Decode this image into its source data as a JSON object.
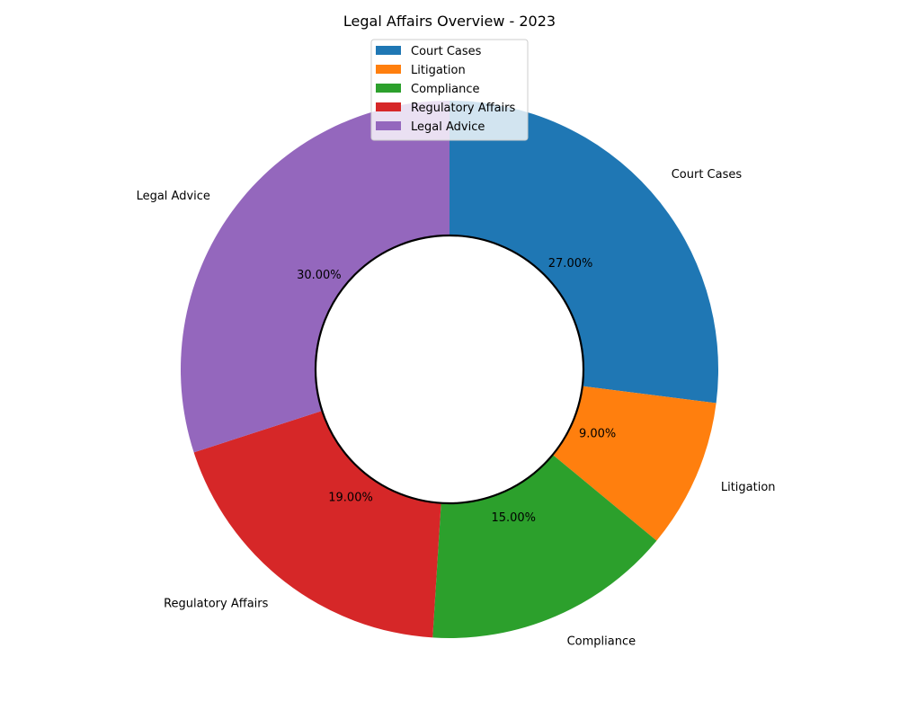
{
  "chart_data": {
    "type": "pie",
    "style": "donut",
    "title": "Legal Affairs Overview - 2023",
    "categories": [
      "Court Cases",
      "Litigation",
      "Compliance",
      "Regulatory Affairs",
      "Legal Advice"
    ],
    "values": [
      27,
      9,
      15,
      19,
      30
    ],
    "percent_labels": [
      "27.00%",
      "9.00%",
      "15.00%",
      "19.00%",
      "30.00%"
    ],
    "colors": [
      "#1f77b4",
      "#ff7f0e",
      "#2ca02c",
      "#d62728",
      "#9467bd"
    ],
    "start_angle_deg": 90,
    "direction": "clockwise",
    "legend": {
      "placement": "upper-center",
      "entries": [
        "Court Cases",
        "Litigation",
        "Compliance",
        "Regulatory Affairs",
        "Legal Advice"
      ]
    }
  }
}
